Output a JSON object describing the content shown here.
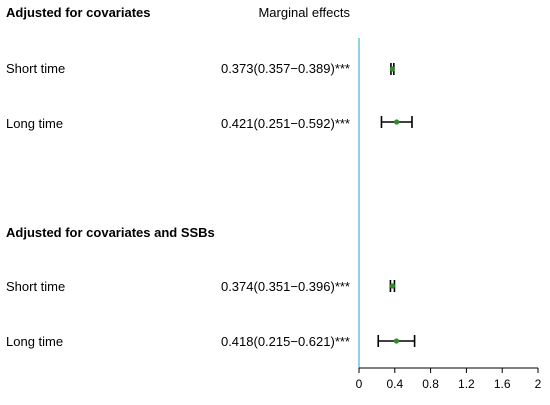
{
  "header": {
    "section1_title": "Adjusted for covariates",
    "effects_title": "Marginal effects",
    "section2_title": "Adjusted for covariates and SSBs"
  },
  "rows": [
    {
      "label": "Short time",
      "effect_text": "0.373(0.357−0.389)***"
    },
    {
      "label": "Long time",
      "effect_text": "0.421(0.251−0.592)***"
    },
    {
      "label": "Short time",
      "effect_text": "0.374(0.351−0.396)***"
    },
    {
      "label": "Long time",
      "effect_text": "0.418(0.215−0.621)***"
    }
  ],
  "chart_data": {
    "type": "forest",
    "title": "Marginal effects",
    "groups": [
      {
        "name": "Adjusted for covariates",
        "items": [
          {
            "label": "Short time",
            "estimate": 0.373,
            "lower": 0.357,
            "upper": 0.389
          },
          {
            "label": "Long time",
            "estimate": 0.421,
            "lower": 0.251,
            "upper": 0.592
          }
        ]
      },
      {
        "name": "Adjusted for covariates and SSBs",
        "items": [
          {
            "label": "Short time",
            "estimate": 0.374,
            "lower": 0.351,
            "upper": 0.396
          },
          {
            "label": "Long time",
            "estimate": 0.418,
            "lower": 0.215,
            "upper": 0.621
          }
        ]
      }
    ],
    "xlim": [
      0,
      2
    ],
    "xticks": [
      "0",
      "0.4",
      "0.8",
      "1.2",
      "1.6",
      "2"
    ],
    "reference_line": 0,
    "colors": {
      "reference_line": "#5bb8d6",
      "point": "#2e8b2e",
      "ci": "#000000"
    }
  }
}
